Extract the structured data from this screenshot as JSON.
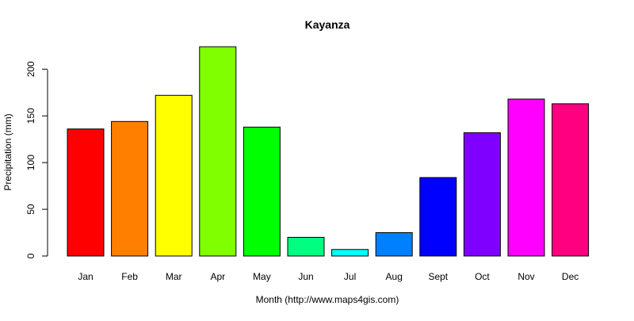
{
  "chart_data": {
    "type": "bar",
    "title": "Kayanza",
    "xlabel": "Month (http://www.maps4gis.com)",
    "ylabel": "Precipitation (mm)",
    "categories": [
      "Jan",
      "Feb",
      "Mar",
      "Apr",
      "May",
      "Jun",
      "Jul",
      "Aug",
      "Sept",
      "Oct",
      "Nov",
      "Dec"
    ],
    "values": [
      136,
      144,
      172,
      224,
      138,
      20,
      7,
      25,
      84,
      132,
      168,
      163
    ],
    "colors": [
      "#FF0000",
      "#FF8000",
      "#FFFF00",
      "#80FF00",
      "#00FF00",
      "#00FF80",
      "#00FFFF",
      "#0080FF",
      "#0000FF",
      "#8000FF",
      "#FF00FF",
      "#FF0080"
    ],
    "y_ticks": [
      0,
      50,
      100,
      150,
      200
    ],
    "ylim": [
      0,
      224
    ],
    "grid": false,
    "legend": "none"
  }
}
